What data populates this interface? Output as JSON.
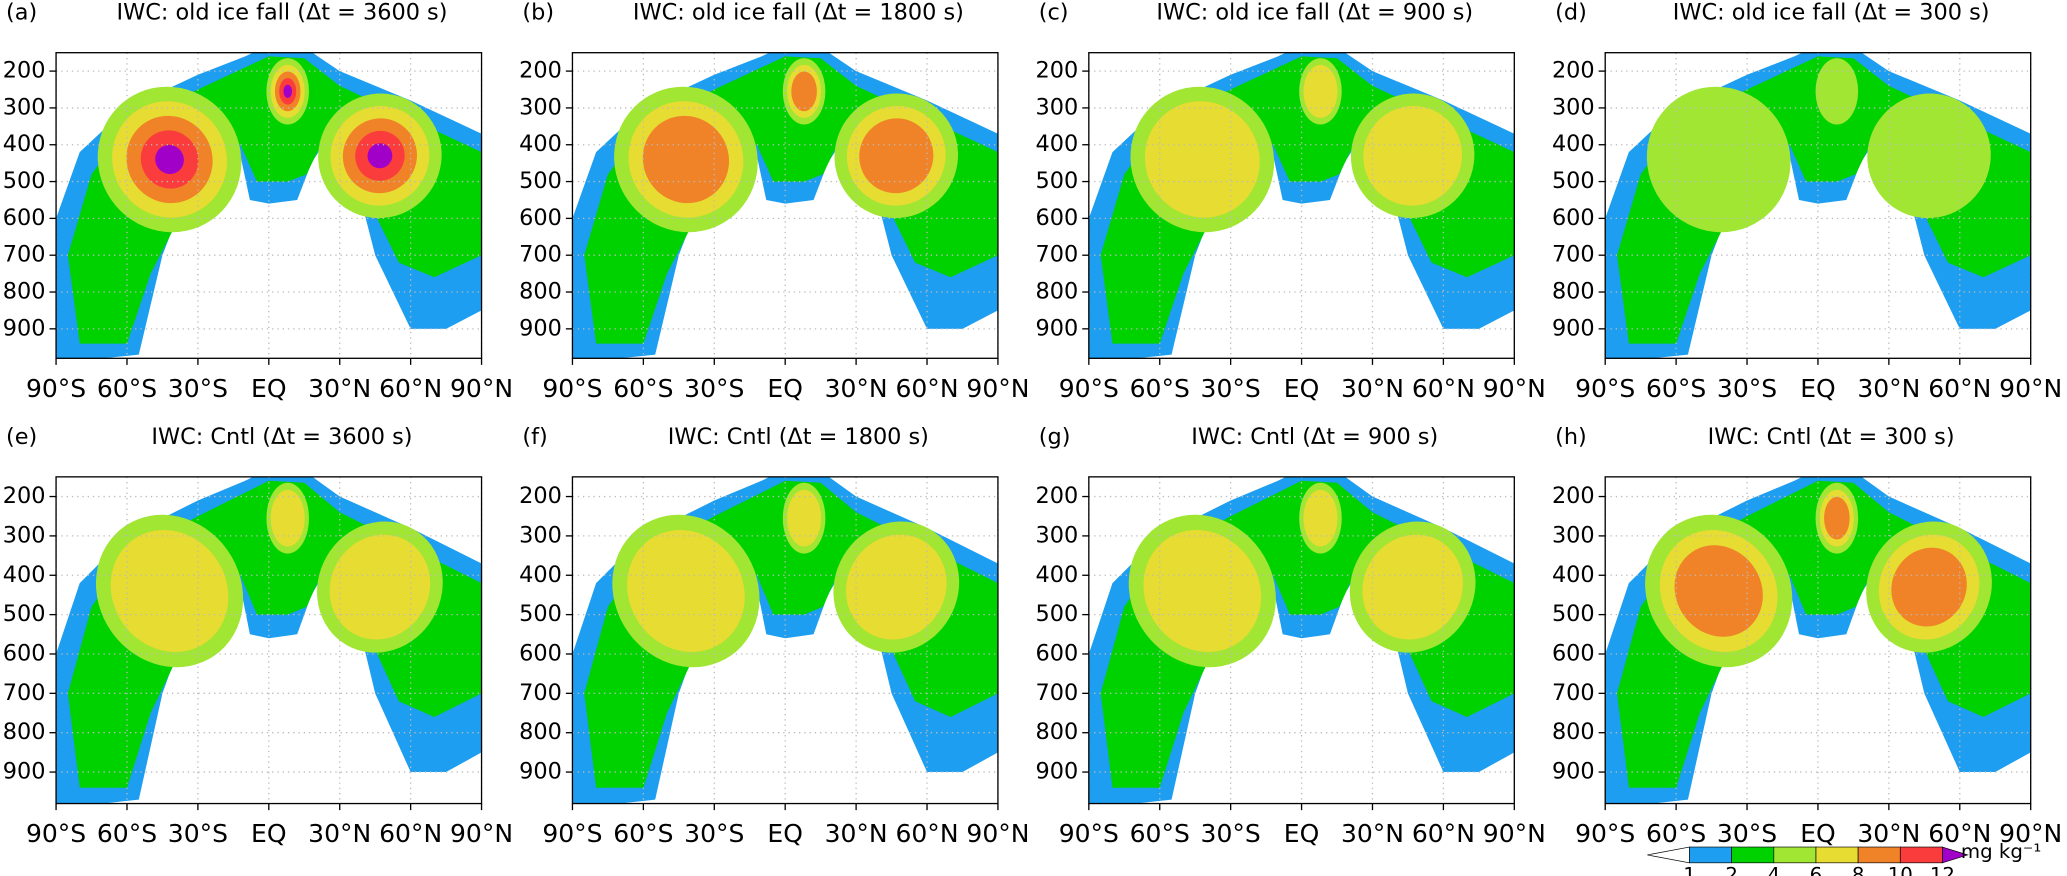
{
  "chart_data": [
    {
      "type": "contour",
      "label": "(a)",
      "title": "IWC:  old  ice  fall  (Δt = 3600 s)",
      "max_level": 6,
      "xlim": [
        -90,
        90
      ],
      "ylim": [
        980,
        150
      ],
      "grid": true,
      "xticks": [
        {
          "value": -90,
          "label": "90°S"
        },
        {
          "value": -60,
          "label": "60°S"
        },
        {
          "value": -30,
          "label": "30°S"
        },
        {
          "value": 0,
          "label": "EQ"
        },
        {
          "value": 30,
          "label": "30°N"
        },
        {
          "value": 60,
          "label": "60°N"
        },
        {
          "value": 90,
          "label": "90°N"
        }
      ],
      "yticks": [
        200,
        300,
        400,
        500,
        600,
        700,
        800,
        900
      ]
    },
    {
      "type": "contour",
      "label": "(b)",
      "title": "IWC:  old  ice  fall  (Δt = 1800 s)",
      "max_level": 4,
      "xlim": [
        -90,
        90
      ],
      "ylim": [
        980,
        150
      ],
      "grid": true,
      "xticks": [
        {
          "value": -90,
          "label": "90°S"
        },
        {
          "value": -60,
          "label": "60°S"
        },
        {
          "value": -30,
          "label": "30°S"
        },
        {
          "value": 0,
          "label": "EQ"
        },
        {
          "value": 30,
          "label": "30°N"
        },
        {
          "value": 60,
          "label": "60°N"
        },
        {
          "value": 90,
          "label": "90°N"
        }
      ],
      "yticks": [
        200,
        300,
        400,
        500,
        600,
        700,
        800,
        900
      ]
    },
    {
      "type": "contour",
      "label": "(c)",
      "title": "IWC:  old  ice  fall  (Δt = 900 s)",
      "max_level": 3,
      "xlim": [
        -90,
        90
      ],
      "ylim": [
        980,
        150
      ],
      "grid": true,
      "xticks": [
        {
          "value": -90,
          "label": "90°S"
        },
        {
          "value": -60,
          "label": "60°S"
        },
        {
          "value": -30,
          "label": "30°S"
        },
        {
          "value": 0,
          "label": "EQ"
        },
        {
          "value": 30,
          "label": "30°N"
        },
        {
          "value": 60,
          "label": "60°N"
        },
        {
          "value": 90,
          "label": "90°N"
        }
      ],
      "yticks": [
        200,
        300,
        400,
        500,
        600,
        700,
        800,
        900
      ]
    },
    {
      "type": "contour",
      "label": "(d)",
      "title": "IWC:  old  ice  fall  (Δt = 300 s)",
      "max_level": 2,
      "xlim": [
        -90,
        90
      ],
      "ylim": [
        980,
        150
      ],
      "grid": true,
      "xticks": [
        {
          "value": -90,
          "label": "90°S"
        },
        {
          "value": -60,
          "label": "60°S"
        },
        {
          "value": -30,
          "label": "30°S"
        },
        {
          "value": 0,
          "label": "EQ"
        },
        {
          "value": 30,
          "label": "30°N"
        },
        {
          "value": 60,
          "label": "60°N"
        },
        {
          "value": 90,
          "label": "90°N"
        }
      ],
      "yticks": [
        200,
        300,
        400,
        500,
        600,
        700,
        800,
        900
      ]
    },
    {
      "type": "contour",
      "label": "(e)",
      "title": "IWC:  Cntl  (Δt = 3600 s)",
      "max_level": 3,
      "xlim": [
        -90,
        90
      ],
      "ylim": [
        980,
        150
      ],
      "grid": true,
      "xticks": [
        {
          "value": -90,
          "label": "90°S"
        },
        {
          "value": -60,
          "label": "60°S"
        },
        {
          "value": -30,
          "label": "30°S"
        },
        {
          "value": 0,
          "label": "EQ"
        },
        {
          "value": 30,
          "label": "30°N"
        },
        {
          "value": 60,
          "label": "60°N"
        },
        {
          "value": 90,
          "label": "90°N"
        }
      ],
      "yticks": [
        200,
        300,
        400,
        500,
        600,
        700,
        800,
        900
      ]
    },
    {
      "type": "contour",
      "label": "(f)",
      "title": "IWC:  Cntl  (Δt = 1800 s)",
      "max_level": 3,
      "xlim": [
        -90,
        90
      ],
      "ylim": [
        980,
        150
      ],
      "grid": true,
      "xticks": [
        {
          "value": -90,
          "label": "90°S"
        },
        {
          "value": -60,
          "label": "60°S"
        },
        {
          "value": -30,
          "label": "30°S"
        },
        {
          "value": 0,
          "label": "EQ"
        },
        {
          "value": 30,
          "label": "30°N"
        },
        {
          "value": 60,
          "label": "60°N"
        },
        {
          "value": 90,
          "label": "90°N"
        }
      ],
      "yticks": [
        200,
        300,
        400,
        500,
        600,
        700,
        800,
        900
      ]
    },
    {
      "type": "contour",
      "label": "(g)",
      "title": "IWC:  Cntl  (Δt = 900 s)",
      "max_level": 3,
      "xlim": [
        -90,
        90
      ],
      "ylim": [
        980,
        150
      ],
      "grid": true,
      "xticks": [
        {
          "value": -90,
          "label": "90°S"
        },
        {
          "value": -60,
          "label": "60°S"
        },
        {
          "value": -30,
          "label": "30°S"
        },
        {
          "value": 0,
          "label": "EQ"
        },
        {
          "value": 30,
          "label": "30°N"
        },
        {
          "value": 60,
          "label": "60°N"
        },
        {
          "value": 90,
          "label": "90°N"
        }
      ],
      "yticks": [
        200,
        300,
        400,
        500,
        600,
        700,
        800,
        900
      ]
    },
    {
      "type": "contour",
      "label": "(h)",
      "title": "IWC:  Cntl  (Δt = 300 s)",
      "max_level": 4,
      "xlim": [
        -90,
        90
      ],
      "ylim": [
        980,
        150
      ],
      "grid": true,
      "xticks": [
        {
          "value": -90,
          "label": "90°S"
        },
        {
          "value": -60,
          "label": "60°S"
        },
        {
          "value": -30,
          "label": "30°S"
        },
        {
          "value": 0,
          "label": "EQ"
        },
        {
          "value": 30,
          "label": "30°N"
        },
        {
          "value": 60,
          "label": "60°N"
        },
        {
          "value": 90,
          "label": "90°N"
        }
      ],
      "yticks": [
        200,
        300,
        400,
        500,
        600,
        700,
        800,
        900
      ]
    }
  ],
  "colorbar": {
    "levels": [
      1,
      2,
      4,
      6,
      8,
      10,
      12
    ],
    "colors": [
      "#ffffff",
      "#1e9ef0",
      "#00d200",
      "#a0e632",
      "#e6dc32",
      "#f08228",
      "#fa3c3c",
      "#a000c8"
    ],
    "units": "mg kg⁻¹"
  }
}
